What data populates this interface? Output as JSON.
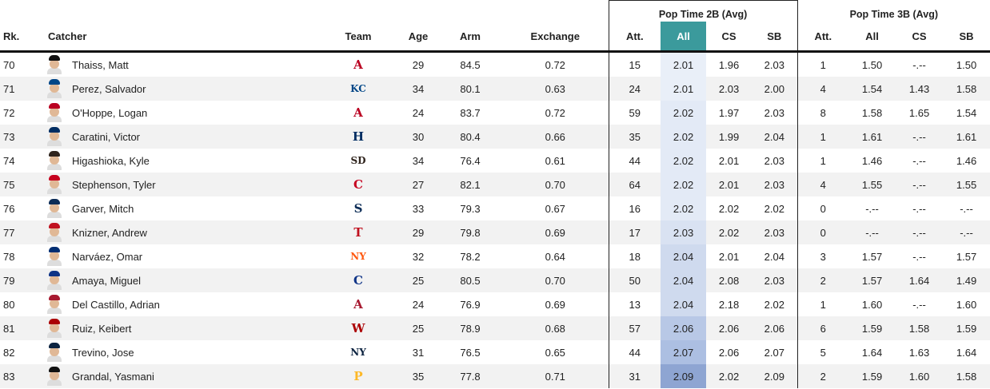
{
  "header": {
    "group_pop2b": "Pop Time 2B (Avg)",
    "group_pop3b": "Pop Time 3B (Avg)",
    "rk": "Rk.",
    "catcher": "Catcher",
    "team": "Team",
    "age": "Age",
    "arm": "Arm",
    "exchange": "Exchange",
    "att2b": "Att.",
    "all2b": "All",
    "cs2b": "CS",
    "sb2b": "SB",
    "att3b": "Att.",
    "all3b": "All",
    "cs3b": "CS",
    "sb3b": "SB"
  },
  "colors": {
    "selected_header": "#3b9a9c",
    "all_col_light": "#e6ecf6",
    "all_col_dark": "#8ea5d2"
  },
  "rows": [
    {
      "rk": "70",
      "name": "Thaiss, Matt",
      "team_icon": "angels-logo",
      "logo": "A",
      "logo_color": "#ba0021",
      "cap": "#111111",
      "age": "29",
      "arm": "84.5",
      "exchange": "0.72",
      "att2b": "15",
      "all2b": "2.01",
      "cs2b": "1.96",
      "sb2b": "2.03",
      "att3b": "1",
      "all3b": "1.50",
      "cs3b": "-.--",
      "sb3b": "1.50",
      "shade": "#e9eff8"
    },
    {
      "rk": "71",
      "name": "Perez, Salvador",
      "team_icon": "royals-logo",
      "logo": "KC",
      "logo_color": "#004687",
      "cap": "#004687",
      "age": "34",
      "arm": "80.1",
      "exchange": "0.63",
      "att2b": "24",
      "all2b": "2.01",
      "cs2b": "2.03",
      "sb2b": "2.00",
      "att3b": "4",
      "all3b": "1.54",
      "cs3b": "1.43",
      "sb3b": "1.58",
      "shade": "#e9eff8"
    },
    {
      "rk": "72",
      "name": "O'Hoppe, Logan",
      "team_icon": "angels-logo",
      "logo": "A",
      "logo_color": "#ba0021",
      "cap": "#ba0021",
      "age": "24",
      "arm": "83.7",
      "exchange": "0.72",
      "att2b": "59",
      "all2b": "2.02",
      "cs2b": "1.97",
      "sb2b": "2.03",
      "att3b": "8",
      "all3b": "1.58",
      "cs3b": "1.65",
      "sb3b": "1.54",
      "shade": "#e3eaf6"
    },
    {
      "rk": "73",
      "name": "Caratini, Victor",
      "team_icon": "astros-logo",
      "logo": "H",
      "logo_color": "#002d62",
      "cap": "#002d62",
      "age": "30",
      "arm": "80.4",
      "exchange": "0.66",
      "att2b": "35",
      "all2b": "2.02",
      "cs2b": "1.99",
      "sb2b": "2.04",
      "att3b": "1",
      "all3b": "1.61",
      "cs3b": "-.--",
      "sb3b": "1.61",
      "shade": "#e3eaf6"
    },
    {
      "rk": "74",
      "name": "Higashioka, Kyle",
      "team_icon": "padres-logo",
      "logo": "SD",
      "logo_color": "#2f241d",
      "cap": "#2f241d",
      "age": "34",
      "arm": "76.4",
      "exchange": "0.61",
      "att2b": "44",
      "all2b": "2.02",
      "cs2b": "2.01",
      "sb2b": "2.03",
      "att3b": "1",
      "all3b": "1.46",
      "cs3b": "-.--",
      "sb3b": "1.46",
      "shade": "#e3eaf6"
    },
    {
      "rk": "75",
      "name": "Stephenson, Tyler",
      "team_icon": "reds-logo",
      "logo": "C",
      "logo_color": "#c6011f",
      "cap": "#c6011f",
      "age": "27",
      "arm": "82.1",
      "exchange": "0.70",
      "att2b": "64",
      "all2b": "2.02",
      "cs2b": "2.01",
      "sb2b": "2.03",
      "att3b": "4",
      "all3b": "1.55",
      "cs3b": "-.--",
      "sb3b": "1.55",
      "shade": "#e3eaf6"
    },
    {
      "rk": "76",
      "name": "Garver, Mitch",
      "team_icon": "mariners-logo",
      "logo": "S",
      "logo_color": "#0c2c56",
      "cap": "#0c2c56",
      "age": "33",
      "arm": "79.3",
      "exchange": "0.67",
      "att2b": "16",
      "all2b": "2.02",
      "cs2b": "2.02",
      "sb2b": "2.02",
      "att3b": "0",
      "all3b": "-.--",
      "cs3b": "-.--",
      "sb3b": "-.--",
      "shade": "#e3eaf6"
    },
    {
      "rk": "77",
      "name": "Knizner, Andrew",
      "team_icon": "rangers-logo",
      "logo": "T",
      "logo_color": "#c0111f",
      "cap": "#c0111f",
      "age": "29",
      "arm": "79.8",
      "exchange": "0.69",
      "att2b": "17",
      "all2b": "2.03",
      "cs2b": "2.02",
      "sb2b": "2.03",
      "att3b": "0",
      "all3b": "-.--",
      "cs3b": "-.--",
      "sb3b": "-.--",
      "shade": "#d9e2f2"
    },
    {
      "rk": "78",
      "name": "Narváez, Omar",
      "team_icon": "mets-logo",
      "logo": "NY",
      "logo_color": "#ff5910",
      "cap": "#002d72",
      "age": "32",
      "arm": "78.2",
      "exchange": "0.64",
      "att2b": "18",
      "all2b": "2.04",
      "cs2b": "2.01",
      "sb2b": "2.04",
      "att3b": "3",
      "all3b": "1.57",
      "cs3b": "-.--",
      "sb3b": "1.57",
      "shade": "#cfdaee"
    },
    {
      "rk": "79",
      "name": "Amaya, Miguel",
      "team_icon": "cubs-logo",
      "logo": "C",
      "logo_color": "#0e3386",
      "cap": "#0e3386",
      "age": "25",
      "arm": "80.5",
      "exchange": "0.70",
      "att2b": "50",
      "all2b": "2.04",
      "cs2b": "2.08",
      "sb2b": "2.03",
      "att3b": "2",
      "all3b": "1.57",
      "cs3b": "1.64",
      "sb3b": "1.49",
      "shade": "#cfdaee"
    },
    {
      "rk": "80",
      "name": "Del Castillo, Adrian",
      "team_icon": "diamondbacks-logo",
      "logo": "A",
      "logo_color": "#a71930",
      "cap": "#a71930",
      "age": "24",
      "arm": "76.9",
      "exchange": "0.69",
      "att2b": "13",
      "all2b": "2.04",
      "cs2b": "2.18",
      "sb2b": "2.02",
      "att3b": "1",
      "all3b": "1.60",
      "cs3b": "-.--",
      "sb3b": "1.60",
      "shade": "#cfdaee"
    },
    {
      "rk": "81",
      "name": "Ruiz, Keibert",
      "team_icon": "nationals-logo",
      "logo": "W",
      "logo_color": "#ab0003",
      "cap": "#ab0003",
      "age": "25",
      "arm": "78.9",
      "exchange": "0.68",
      "att2b": "57",
      "all2b": "2.06",
      "cs2b": "2.06",
      "sb2b": "2.06",
      "att3b": "6",
      "all3b": "1.59",
      "cs3b": "1.58",
      "sb3b": "1.59",
      "shade": "#b8c8e6"
    },
    {
      "rk": "82",
      "name": "Trevino, Jose",
      "team_icon": "yankees-logo",
      "logo": "NY",
      "logo_color": "#0c2340",
      "cap": "#0c2340",
      "age": "31",
      "arm": "76.5",
      "exchange": "0.65",
      "att2b": "44",
      "all2b": "2.07",
      "cs2b": "2.06",
      "sb2b": "2.07",
      "att3b": "5",
      "all3b": "1.64",
      "cs3b": "1.63",
      "sb3b": "1.64",
      "shade": "#acbfe2"
    },
    {
      "rk": "83",
      "name": "Grandal, Yasmani",
      "team_icon": "pirates-logo",
      "logo": "P",
      "logo_color": "#fdb827",
      "cap": "#111111",
      "age": "35",
      "arm": "77.8",
      "exchange": "0.71",
      "att2b": "31",
      "all2b": "2.09",
      "cs2b": "2.02",
      "sb2b": "2.09",
      "att3b": "2",
      "all3b": "1.59",
      "cs3b": "1.60",
      "sb3b": "1.58",
      "shade": "#8ea5d2"
    }
  ]
}
